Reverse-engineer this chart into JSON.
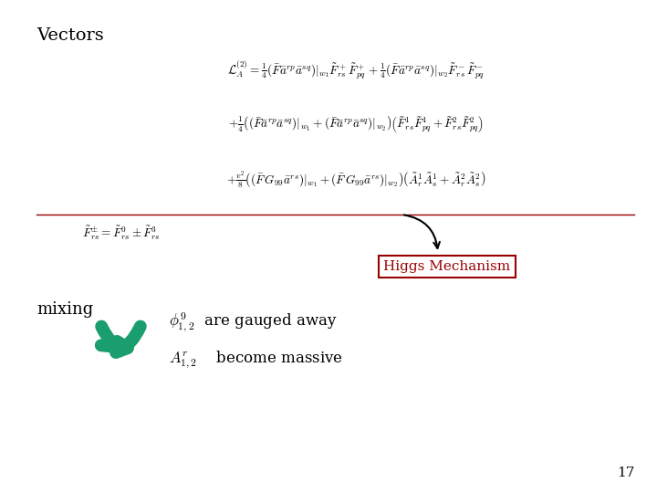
{
  "title": "Vectors",
  "bg_color": "#ffffff",
  "slide_number": "17",
  "eq1": "$\\mathcal{L}_A^{(2)} = \\frac{1}{4}(\\bar{F}\\bar{a}^{rp}\\bar{a}^{sq})|_{w_1}\\tilde{F}^+_{rs}\\tilde{F}^+_{pq} + \\frac{1}{4}(\\bar{F}\\bar{a}^{rp}\\bar{a}^{sq})|_{w_2}\\tilde{F}^-_{rs}\\tilde{F}^-_{pq}$",
  "eq2": "$+ \\frac{1}{4}\\left((\\bar{F}\\bar{a}^{rp}\\bar{a}^{sq})|_{w_1} + (\\bar{F}\\bar{a}^{rp}\\bar{a}^{sq})|_{w_2}\\right)\\left(\\tilde{F}^1_{rs}\\tilde{F}^1_{pq} + \\tilde{F}^2_{rs}\\tilde{F}^2_{pq}\\right)$",
  "eq3": "$+ \\frac{v^2}{8}\\left((\\bar{F}\\, G_{99}\\bar{a}^{rs})|_{w_1} + (\\bar{F}\\, G_{99}\\bar{a}^{rs})|_{w_2}\\right)\\left(\\tilde{A}^1_r\\tilde{A}^1_s + \\tilde{A}^2_r\\tilde{A}^2_s\\right)$",
  "eq_def": "$\\tilde{F}^{\\pm}_{rs} = \\tilde{F}^0_{rs} \\pm \\tilde{F}^3_{rs}$",
  "higgs_label": "Higgs Mechanism",
  "higgs_color": "#990000",
  "mixing_label": "mixing",
  "text_phi": "$\\phi^9_{1,2}$  are gauged away",
  "text_A": "$A^r_{1,2}$    become massive",
  "arrow_color": "#1a9e6e",
  "line_color": "#990000",
  "font_color": "#000000",
  "eq_fontsize": 9.5,
  "title_fontsize": 14
}
